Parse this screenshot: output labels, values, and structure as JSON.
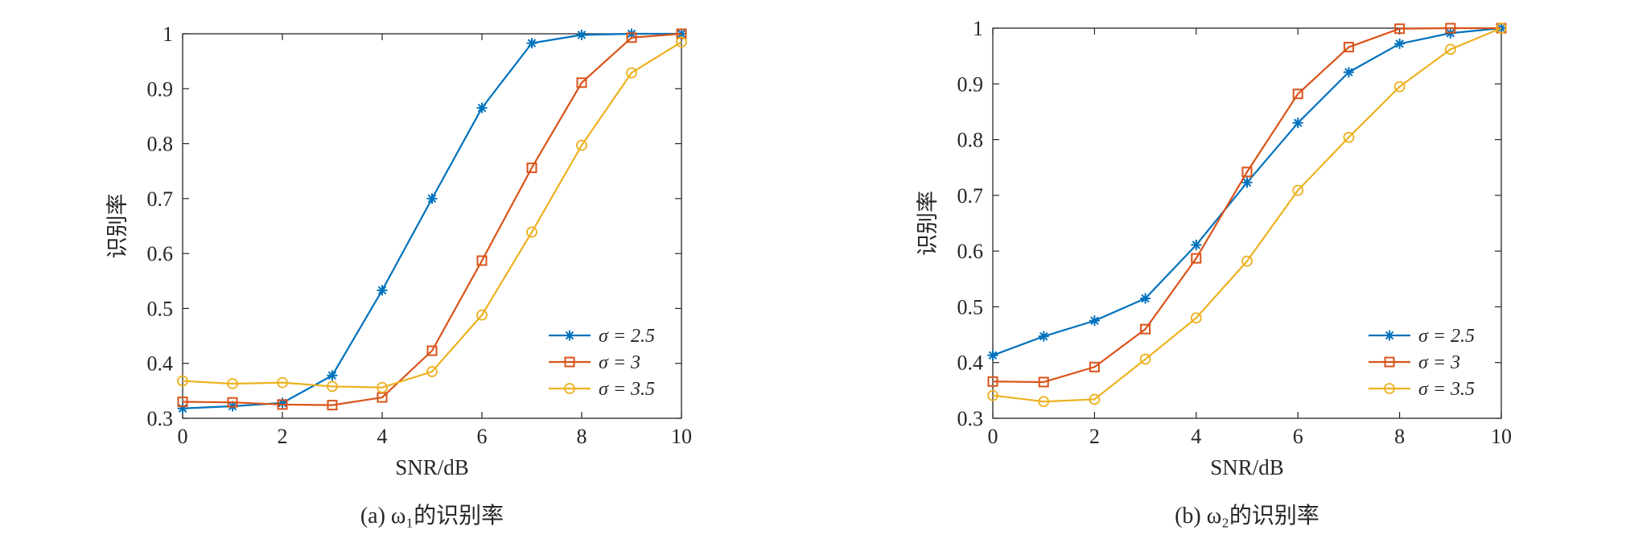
{
  "figure": {
    "captions": [
      "(a) ω₁的识别率",
      "(b) ω₂的识别率"
    ]
  },
  "chart_data": [
    {
      "type": "line",
      "caption": "(a) ω₁的识别率",
      "xlabel": "SNR/dB",
      "ylabel": "识别率",
      "xlim": [
        0,
        10
      ],
      "ylim": [
        0.3,
        1
      ],
      "xticks": [
        0,
        2,
        4,
        6,
        8,
        10
      ],
      "yticks": [
        0.3,
        0.4,
        0.5,
        0.6,
        0.7,
        0.8,
        0.9,
        1
      ],
      "ytick_labels": [
        "0.3",
        "0.4",
        "0.5",
        "0.6",
        "0.7",
        "0.8",
        "0.9",
        "1"
      ],
      "x": [
        0,
        1,
        2,
        3,
        4,
        5,
        6,
        7,
        8,
        9,
        10
      ],
      "legend_position": "lower-right",
      "grid": false,
      "series": [
        {
          "name": "σ = 2.5",
          "color": "#0072BD",
          "marker": "asterisk",
          "values": [
            0.318,
            0.322,
            0.328,
            0.378,
            0.533,
            0.7,
            0.865,
            0.983,
            0.998,
            1.0,
            1.0
          ]
        },
        {
          "name": "σ = 3",
          "color": "#D95319",
          "marker": "square",
          "values": [
            0.33,
            0.329,
            0.325,
            0.324,
            0.338,
            0.423,
            0.587,
            0.756,
            0.911,
            0.993,
            1.0
          ]
        },
        {
          "name": "σ = 3.5",
          "color": "#EDB120",
          "marker": "circle",
          "values": [
            0.368,
            0.363,
            0.365,
            0.358,
            0.356,
            0.385,
            0.488,
            0.639,
            0.797,
            0.929,
            0.985
          ]
        }
      ]
    },
    {
      "type": "line",
      "caption": "(b) ω₂的识别率",
      "xlabel": "SNR/dB",
      "ylabel": "识别率",
      "xlim": [
        0,
        10
      ],
      "ylim": [
        0.3,
        1
      ],
      "xticks": [
        0,
        2,
        4,
        6,
        8,
        10
      ],
      "yticks": [
        0.3,
        0.4,
        0.5,
        0.6,
        0.7,
        0.8,
        0.9,
        1
      ],
      "ytick_labels": [
        "0.3",
        "0.4",
        "0.5",
        "0.6",
        "0.7",
        "0.8",
        "0.9",
        "1"
      ],
      "x": [
        0,
        1,
        2,
        3,
        4,
        5,
        6,
        7,
        8,
        9,
        10
      ],
      "legend_position": "lower-right",
      "grid": false,
      "series": [
        {
          "name": "σ = 2.5",
          "color": "#0072BD",
          "marker": "asterisk",
          "values": [
            0.413,
            0.447,
            0.475,
            0.515,
            0.611,
            0.723,
            0.83,
            0.921,
            0.972,
            0.991,
            1.0
          ]
        },
        {
          "name": "σ = 3",
          "color": "#D95319",
          "marker": "square",
          "values": [
            0.366,
            0.365,
            0.392,
            0.46,
            0.587,
            0.742,
            0.882,
            0.966,
            0.999,
            1.0,
            1.0
          ]
        },
        {
          "name": "σ = 3.5",
          "color": "#EDB120",
          "marker": "circle",
          "values": [
            0.341,
            0.33,
            0.334,
            0.406,
            0.48,
            0.582,
            0.709,
            0.804,
            0.895,
            0.962,
            1.0
          ]
        }
      ]
    }
  ]
}
